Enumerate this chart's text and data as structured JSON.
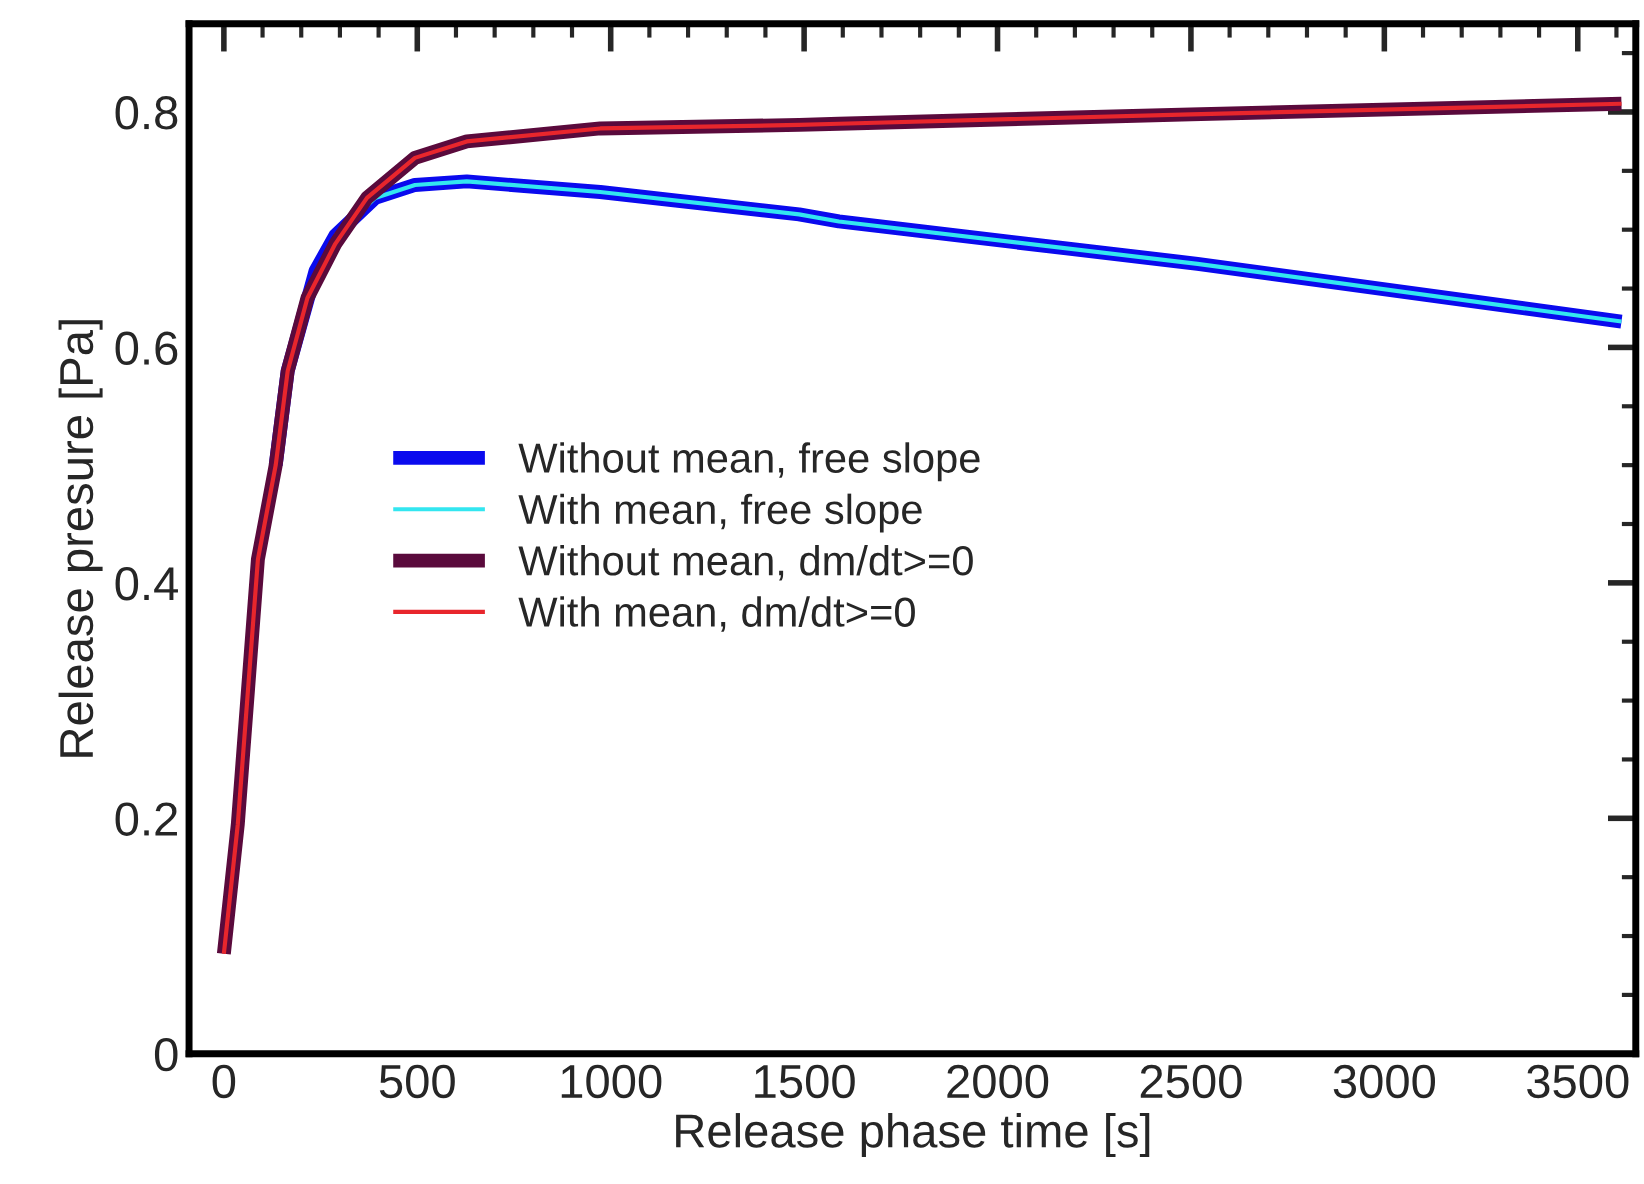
{
  "chart_data": {
    "type": "line",
    "xlabel": "Release phase time [s]",
    "ylabel": "Release presure [Pa]",
    "xlim": [
      -90,
      3650
    ],
    "ylim": [
      0,
      0.875
    ],
    "xticks": [
      0,
      500,
      1000,
      1500,
      2000,
      2500,
      3000,
      3500
    ],
    "yticks": [
      0,
      0.2,
      0.4,
      0.6,
      {
        "value": 0.8,
        "label": "0.8"
      }
    ],
    "grid": false,
    "legend": "left",
    "marker": "none",
    "line_style": "solid",
    "series": [
      {
        "name": "Without mean, free slope",
        "color": "#0a0aee",
        "x": [
          134,
          165,
          216,
          237,
          288,
          391,
          494,
          628,
          973,
          1487,
          1590,
          2517,
          3613
        ],
        "values": [
          0.5,
          0.58,
          0.64,
          0.665,
          0.695,
          0.727,
          0.738,
          0.741,
          0.732,
          0.713,
          0.707,
          0.671,
          0.622
        ]
      },
      {
        "name": "With mean, free slope",
        "color": "#33e6f0",
        "x": [
          288,
          391,
          494,
          628,
          973,
          1487,
          1590,
          2517,
          3613
        ],
        "values": [
          0.695,
          0.727,
          0.738,
          0.741,
          0.732,
          0.713,
          0.707,
          0.671,
          0.622
        ]
      },
      {
        "name": "Without mean, dm/dt>=0",
        "color": "#5a0a3c",
        "x": [
          0,
          36,
          88,
          134,
          165,
          216,
          288,
          370,
          494,
          628,
          973,
          1487,
          1590,
          2500,
          3613
        ],
        "values": [
          0.085,
          0.195,
          0.42,
          0.5,
          0.58,
          0.642,
          0.688,
          0.727,
          0.761,
          0.775,
          0.786,
          0.789,
          0.79,
          0.798,
          0.807
        ]
      },
      {
        "name": "With mean, dm/dt>=0",
        "color": "#e8262c",
        "x": [
          0,
          36,
          88,
          134,
          165,
          216,
          288,
          370,
          494,
          628,
          973,
          1487,
          1590,
          2500,
          3613
        ],
        "values": [
          0.085,
          0.195,
          0.42,
          0.5,
          0.58,
          0.642,
          0.688,
          0.727,
          0.761,
          0.775,
          0.786,
          0.789,
          0.79,
          0.798,
          0.807
        ]
      }
    ]
  }
}
